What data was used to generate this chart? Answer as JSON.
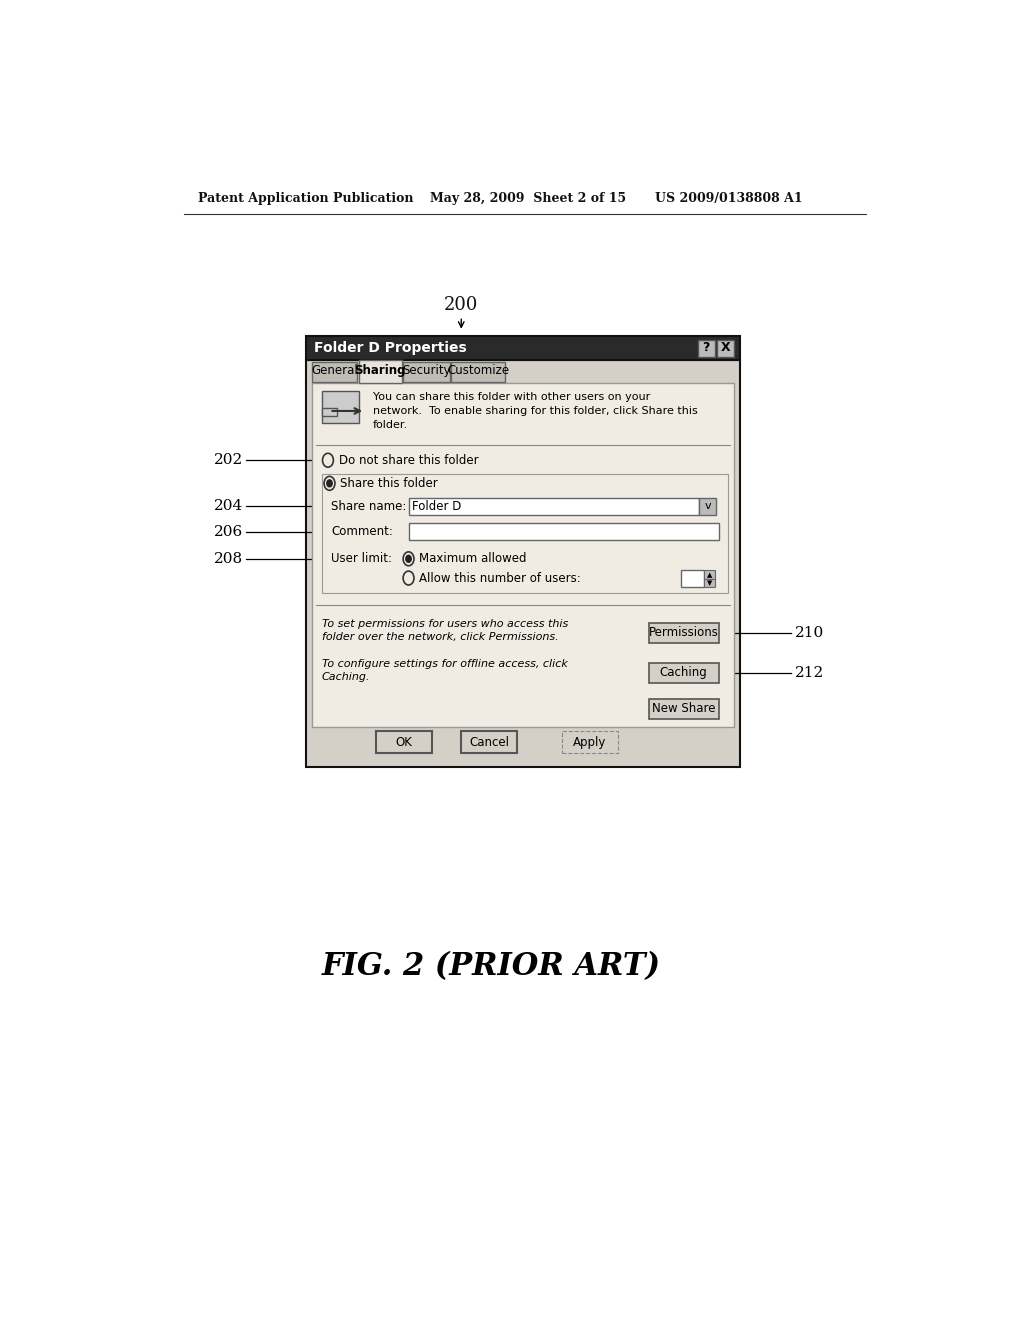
{
  "bg_color": "#ffffff",
  "header_text_left": "Patent Application Publication",
  "header_text_mid": "May 28, 2009  Sheet 2 of 15",
  "header_text_right": "US 2009/0138808 A1",
  "figure_label": "FIG. 2 (PRIOR ART)",
  "diagram_label": "200",
  "title": "Folder D Properties",
  "tabs": [
    "General",
    "Sharing",
    "Security",
    "Customize"
  ],
  "active_tab": "Sharing",
  "description_text": "You can share this folder with other users on your\nnetwork.  To enable sharing for this folder, click Share this\nfolder.",
  "permission_text_line1": "To set permissions for users who access this",
  "permission_text_line2": "folder over the network, click Permissions.",
  "permission_btn": "Permissions",
  "caching_text_line1": "To configure settings for offline access, click",
  "caching_text_line2": "Caching.",
  "caching_btn": "Caching",
  "new_share_btn": "New Share",
  "bottom_buttons": [
    "OK",
    "Cancel",
    "Apply"
  ],
  "share_name_value": "Folder D",
  "callout_ids": [
    "202",
    "204",
    "206",
    "208",
    "210",
    "212"
  ]
}
